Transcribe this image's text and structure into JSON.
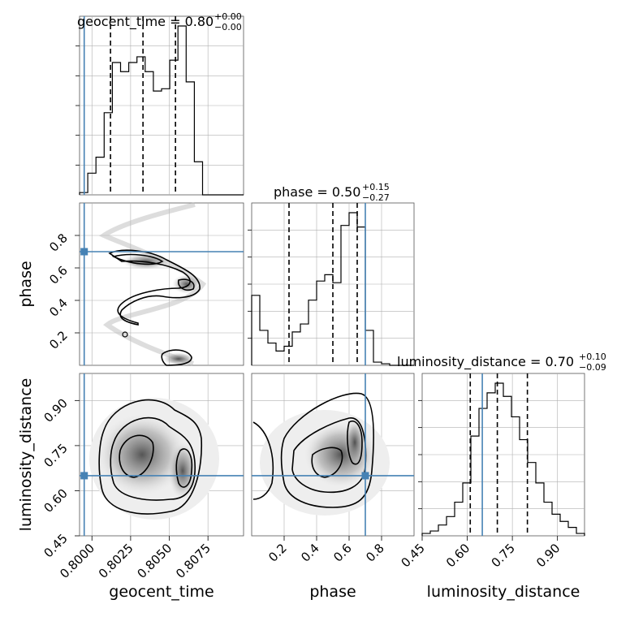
{
  "chart_data": {
    "type": "corner",
    "parameters": [
      "geocent_time",
      "phase",
      "luminosity_distance"
    ],
    "truths": {
      "geocent_time": 0.7995,
      "phase": 0.7,
      "luminosity_distance": 0.65
    },
    "titles": [
      {
        "param": "geocent_time",
        "main": "geocent_time = 0.80",
        "plus": "+0.00",
        "minus": "−0.00"
      },
      {
        "param": "phase",
        "main": "phase = 0.50",
        "plus": "+0.15",
        "minus": "−0.27"
      },
      {
        "param": "luminosity_distance",
        "main": "luminosity_distance = 0.70",
        "plus": "+0.10",
        "minus": "−0.09"
      }
    ],
    "axis_labels": {
      "x": [
        "geocent_time",
        "phase",
        "luminosity_distance"
      ],
      "y": [
        "phase",
        "luminosity_distance"
      ]
    },
    "tick_labels": {
      "geocent_time": [
        "0.8000",
        "0.8025",
        "0.8050",
        "0.8075"
      ],
      "phase": [
        "0.2",
        "0.4",
        "0.6",
        "0.8"
      ],
      "luminosity_distance": [
        "0.45",
        "0.60",
        "0.75",
        "0.90"
      ]
    },
    "ranges": {
      "geocent_time": [
        0.7992,
        0.8098
      ],
      "phase": [
        0.0,
        1.0
      ],
      "luminosity_distance": [
        0.45,
        0.99
      ]
    },
    "histograms": {
      "geocent_time": {
        "edges": [
          0.7992,
          0.79973,
          0.80026,
          0.80079,
          0.80132,
          0.80185,
          0.80238,
          0.80291,
          0.80344,
          0.80397,
          0.8045,
          0.80503,
          0.80556,
          0.80609,
          0.80662,
          0.80715,
          0.80768,
          0.80821,
          0.80874,
          0.80927,
          0.8098
        ],
        "counts": [
          2,
          19,
          33,
          72,
          116,
          108,
          116,
          121,
          108,
          91,
          93,
          118,
          148,
          99,
          29,
          0,
          0,
          0,
          0,
          0
        ],
        "quantiles": [
          0.8012,
          0.8033,
          0.8054
        ]
      },
      "phase": {
        "edges": [
          0.0,
          0.05,
          0.1,
          0.15,
          0.2,
          0.25,
          0.3,
          0.35,
          0.4,
          0.45,
          0.5,
          0.55,
          0.6,
          0.65,
          0.7,
          0.75,
          0.8,
          0.85,
          0.9,
          0.95,
          1.0
        ],
        "counts": [
          44,
          22,
          14,
          9,
          12,
          21,
          26,
          41,
          53,
          57,
          52,
          88,
          96,
          87,
          22,
          2,
          1,
          0,
          0,
          0
        ],
        "quantiles": [
          0.23,
          0.5,
          0.65
        ]
      },
      "luminosity_distance": {
        "edges": [
          0.45,
          0.477,
          0.504,
          0.531,
          0.558,
          0.585,
          0.612,
          0.639,
          0.666,
          0.693,
          0.72,
          0.747,
          0.774,
          0.801,
          0.828,
          0.855,
          0.882,
          0.909,
          0.936,
          0.963,
          0.99
        ],
        "counts": [
          2,
          4,
          9,
          16,
          28,
          44,
          83,
          106,
          119,
          127,
          116,
          99,
          80,
          61,
          44,
          28,
          18,
          12,
          7,
          2
        ],
        "quantiles": [
          0.61,
          0.7,
          0.8
        ]
      }
    },
    "grid": true
  }
}
